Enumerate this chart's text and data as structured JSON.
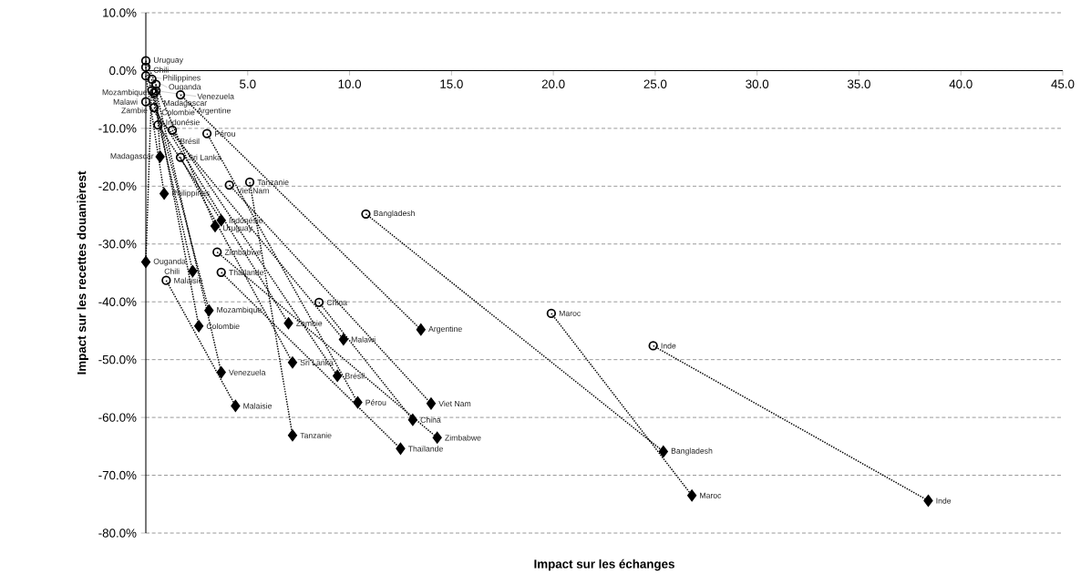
{
  "chart_data": {
    "type": "scatter",
    "xlabel": "Impact sur les échanges",
    "ylabel": "Impact sur les recettes douanièrest",
    "xlim": [
      0,
      45
    ],
    "ylim": [
      -80,
      10
    ],
    "grid": "y",
    "xticks": [
      {
        "value": 0,
        "label": null
      },
      {
        "value": 5,
        "label": "5.0"
      },
      {
        "value": 10,
        "label": "10.0"
      },
      {
        "value": 15,
        "label": "15.0"
      },
      {
        "value": 20,
        "label": "20.0"
      },
      {
        "value": 25,
        "label": "25.0"
      },
      {
        "value": 30,
        "label": "30.0"
      },
      {
        "value": 35,
        "label": "35.0"
      },
      {
        "value": 40,
        "label": "40.0"
      },
      {
        "value": 45,
        "label": "45.0"
      }
    ],
    "yticks": [
      {
        "value": 10,
        "label": "10.0%"
      },
      {
        "value": 0,
        "label": "0.0%"
      },
      {
        "value": -10,
        "label": "-10.0%"
      },
      {
        "value": -20,
        "label": "-20.0%"
      },
      {
        "value": -30,
        "label": "-30.0%"
      },
      {
        "value": -40,
        "label": "-40.0%"
      },
      {
        "value": -50,
        "label": "-50.0%"
      },
      {
        "value": -60,
        "label": "-60.0%"
      },
      {
        "value": -70,
        "label": "-70.0%"
      },
      {
        "value": -80,
        "label": "-80.0%"
      }
    ],
    "series": [
      {
        "type": "line",
        "color": "#000000",
        "line_style": "dotted",
        "marker": "none",
        "x": [
          0,
          3.4
        ],
        "values": [
          1.7,
          -26.9
        ]
      },
      {
        "type": "line",
        "color": "#000000",
        "line_style": "dotted",
        "marker": "none",
        "x": [
          0,
          2.3
        ],
        "values": [
          0.6,
          -34.7
        ]
      },
      {
        "type": "line",
        "color": "#000000",
        "line_style": "dotted",
        "marker": "none",
        "x": [
          0,
          0.9
        ],
        "values": [
          -0.9,
          -21.3
        ]
      },
      {
        "type": "line",
        "color": "#000000",
        "line_style": "dotted",
        "marker": "none",
        "x": [
          0.3,
          0
        ],
        "values": [
          -1.5,
          -33.1
        ]
      },
      {
        "type": "line",
        "color": "#000000",
        "line_style": "dotted",
        "marker": "none",
        "x": [
          0.5,
          0.7
        ],
        "values": [
          -2.4,
          -14.9
        ]
      },
      {
        "type": "line",
        "color": "#000000",
        "line_style": "dotted",
        "marker": "none",
        "x": [
          0.3,
          3.1
        ],
        "values": [
          -3.4,
          -41.5
        ]
      },
      {
        "type": "line",
        "color": "#000000",
        "line_style": "dotted",
        "marker": "none",
        "x": [
          0.4,
          2.6
        ],
        "values": [
          -3.9,
          -44.2
        ]
      },
      {
        "type": "line",
        "color": "#000000",
        "line_style": "dotted",
        "marker": "none",
        "x": [
          0.5,
          3.7
        ],
        "values": [
          -3.5,
          -52.2
        ]
      },
      {
        "type": "line",
        "color": "#000000",
        "line_style": "dotted",
        "marker": "none",
        "x": [
          1.7,
          13.5
        ],
        "values": [
          -4.2,
          -44.8
        ]
      },
      {
        "type": "line",
        "color": "#000000",
        "line_style": "dotted",
        "marker": "none",
        "x": [
          0,
          9.7
        ],
        "values": [
          -5.4,
          -46.5
        ]
      },
      {
        "type": "line",
        "color": "#000000",
        "line_style": "dotted",
        "marker": "none",
        "x": [
          0.4,
          7.0
        ],
        "values": [
          -6.4,
          -43.7
        ]
      },
      {
        "type": "line",
        "color": "#000000",
        "line_style": "dotted",
        "marker": "none",
        "x": [
          0.6,
          3.7
        ],
        "values": [
          -9.4,
          -25.9
        ]
      },
      {
        "type": "line",
        "color": "#000000",
        "line_style": "dotted",
        "marker": "none",
        "x": [
          1.3,
          9.4
        ],
        "values": [
          -10.3,
          -52.8
        ]
      },
      {
        "type": "line",
        "color": "#000000",
        "line_style": "dotted",
        "marker": "none",
        "x": [
          3.0,
          10.4
        ],
        "values": [
          -10.9,
          -57.4
        ]
      },
      {
        "type": "line",
        "color": "#000000",
        "line_style": "dotted",
        "marker": "none",
        "x": [
          1.7,
          7.2
        ],
        "values": [
          -15.0,
          -50.5
        ]
      },
      {
        "type": "line",
        "color": "#000000",
        "line_style": "dotted",
        "marker": "none",
        "x": [
          4.1,
          14.0
        ],
        "values": [
          -19.8,
          -57.6
        ]
      },
      {
        "type": "line",
        "color": "#000000",
        "line_style": "dotted",
        "marker": "none",
        "x": [
          5.1,
          7.2
        ],
        "values": [
          -19.3,
          -63.1
        ]
      },
      {
        "type": "line",
        "color": "#000000",
        "line_style": "dotted",
        "marker": "none",
        "x": [
          10.8,
          25.4
        ],
        "values": [
          -24.8,
          -65.9
        ]
      },
      {
        "type": "line",
        "color": "#000000",
        "line_style": "dotted",
        "marker": "none",
        "x": [
          3.5,
          14.3
        ],
        "values": [
          -31.4,
          -63.5
        ]
      },
      {
        "type": "line",
        "color": "#000000",
        "line_style": "dotted",
        "marker": "none",
        "x": [
          3.7,
          12.5
        ],
        "values": [
          -34.9,
          -65.4
        ]
      },
      {
        "type": "line",
        "color": "#000000",
        "line_style": "dotted",
        "marker": "none",
        "x": [
          1.0,
          4.4
        ],
        "values": [
          -36.3,
          -58.0
        ]
      },
      {
        "type": "line",
        "color": "#000000",
        "line_style": "dotted",
        "marker": "none",
        "x": [
          8.5,
          13.1
        ],
        "values": [
          -40.1,
          -60.4
        ]
      },
      {
        "type": "line",
        "color": "#000000",
        "line_style": "dotted",
        "marker": "none",
        "x": [
          19.9,
          26.8
        ],
        "values": [
          -42.0,
          -73.5
        ]
      },
      {
        "type": "line",
        "color": "#000000",
        "line_style": "dotted",
        "marker": "none",
        "x": [
          24.9,
          38.4
        ],
        "values": [
          -47.6,
          -74.4
        ]
      },
      {
        "color": "#000000",
        "marker": "circle",
        "x": [
          0,
          0,
          0,
          0.3,
          0.5,
          0.3,
          0.4,
          0.5,
          1.7,
          0,
          0.4,
          0.6,
          1.3,
          3.0,
          1.7,
          4.1,
          5.1,
          10.8,
          3.5,
          3.7,
          1.0,
          8.5,
          19.9,
          24.9
        ],
        "values": [
          1.7,
          0.6,
          -0.9,
          -1.5,
          -2.4,
          -3.4,
          -3.9,
          -3.5,
          -4.2,
          -5.4,
          -6.4,
          -9.4,
          -10.3,
          -10.9,
          -15.0,
          -19.8,
          -19.3,
          -24.8,
          -31.4,
          -34.9,
          -36.3,
          -40.1,
          -42.0,
          -47.6
        ]
      },
      {
        "color": "#000000",
        "marker": "diamond",
        "x": [
          3.4,
          2.3,
          0.9,
          0,
          0.7,
          3.1,
          2.6,
          3.7,
          13.5,
          9.7,
          7.0,
          3.7,
          9.4,
          10.4,
          7.2,
          14.0,
          7.2,
          25.4,
          14.3,
          12.5,
          4.4,
          13.1,
          26.8,
          38.4
        ],
        "values": [
          -26.9,
          -34.7,
          -21.3,
          -33.1,
          -14.9,
          -41.5,
          -44.2,
          -52.2,
          -44.8,
          -46.5,
          -43.7,
          -25.9,
          -52.8,
          -57.4,
          -50.5,
          -57.6,
          -63.1,
          -65.9,
          -63.5,
          -65.4,
          -58.0,
          -60.4,
          -73.5,
          -74.4
        ]
      }
    ],
    "annotations": [
      {
        "text": "Uruguay",
        "x": 0,
        "y": 1.7
      },
      {
        "text": "Chili",
        "x": 0,
        "y": 0.6
      },
      {
        "text": "Philippines",
        "x": 0,
        "y": -0.9
      },
      {
        "text": "Ouganda",
        "x": 0.3,
        "y": -1.5
      },
      {
        "text": "Madagascar",
        "x": 0.5,
        "y": -2.4
      },
      {
        "text": "Mozambique",
        "x": 0.3,
        "y": -3.4
      },
      {
        "text": "Colombie",
        "x": 0.4,
        "y": -3.9
      },
      {
        "text": "Venezuela",
        "x": 0.5,
        "y": -3.5
      },
      {
        "text": "Argentine",
        "x": 1.7,
        "y": -4.2
      },
      {
        "text": "Malawi",
        "x": 0,
        "y": -5.4
      },
      {
        "text": "Zambie",
        "x": 0.4,
        "y": -6.4
      },
      {
        "text": "Indonésie",
        "x": 0.6,
        "y": -9.4
      },
      {
        "text": "Brésil",
        "x": 1.3,
        "y": -10.3
      },
      {
        "text": "Pérou",
        "x": 3.0,
        "y": -10.9
      },
      {
        "text": "Sri Lanka",
        "x": 1.7,
        "y": -15.0
      },
      {
        "text": "Viet Nam",
        "x": 4.1,
        "y": -19.8
      },
      {
        "text": "Tanzanie",
        "x": 5.1,
        "y": -19.3
      },
      {
        "text": "Bangladesh",
        "x": 10.8,
        "y": -24.8
      },
      {
        "text": "Zimbabwe",
        "x": 3.5,
        "y": -31.4
      },
      {
        "text": "Thaïlande",
        "x": 3.7,
        "y": -34.9
      },
      {
        "text": "Malaisie",
        "x": 1.0,
        "y": -36.3
      },
      {
        "text": "China",
        "x": 8.5,
        "y": -40.1
      },
      {
        "text": "Maroc",
        "x": 19.9,
        "y": -42.0
      },
      {
        "text": "Inde",
        "x": 24.9,
        "y": -47.6
      },
      {
        "text": "Uruguay",
        "x": 3.4,
        "y": -26.9
      },
      {
        "text": "Chili",
        "x": 2.3,
        "y": -34.7
      },
      {
        "text": "Philippines",
        "x": 0.9,
        "y": -21.3
      },
      {
        "text": "Ouganda",
        "x": 0,
        "y": -33.1
      },
      {
        "text": "Madagascar",
        "x": 0.7,
        "y": -14.9
      },
      {
        "text": "Mozambique",
        "x": 3.1,
        "y": -41.5
      },
      {
        "text": "Colombie",
        "x": 2.6,
        "y": -44.2
      },
      {
        "text": "Venezuela",
        "x": 3.7,
        "y": -52.2
      },
      {
        "text": "Argentine",
        "x": 13.5,
        "y": -44.8
      },
      {
        "text": "Malawi",
        "x": 9.7,
        "y": -46.5
      },
      {
        "text": "Zambie",
        "x": 7.0,
        "y": -43.7
      },
      {
        "text": "Indonésie",
        "x": 3.7,
        "y": -25.9
      },
      {
        "text": "Brésil",
        "x": 9.4,
        "y": -52.8
      },
      {
        "text": "Pérou",
        "x": 10.4,
        "y": -57.4
      },
      {
        "text": "Sri Lanka",
        "x": 7.2,
        "y": -50.5
      },
      {
        "text": "Viet Nam",
        "x": 14.0,
        "y": -57.6
      },
      {
        "text": "Tanzanie",
        "x": 7.2,
        "y": -63.1
      },
      {
        "text": "Bangladesh",
        "x": 25.4,
        "y": -65.9
      },
      {
        "text": "Zimbabwe",
        "x": 14.3,
        "y": -63.5
      },
      {
        "text": "Thaïlande",
        "x": 12.5,
        "y": -65.4
      },
      {
        "text": "Malaisie",
        "x": 4.4,
        "y": -58.0
      },
      {
        "text": "China",
        "x": 13.1,
        "y": -60.4
      },
      {
        "text": "Maroc",
        "x": 26.8,
        "y": -73.5
      },
      {
        "text": "Inde",
        "x": 38.4,
        "y": -74.4
      }
    ]
  }
}
